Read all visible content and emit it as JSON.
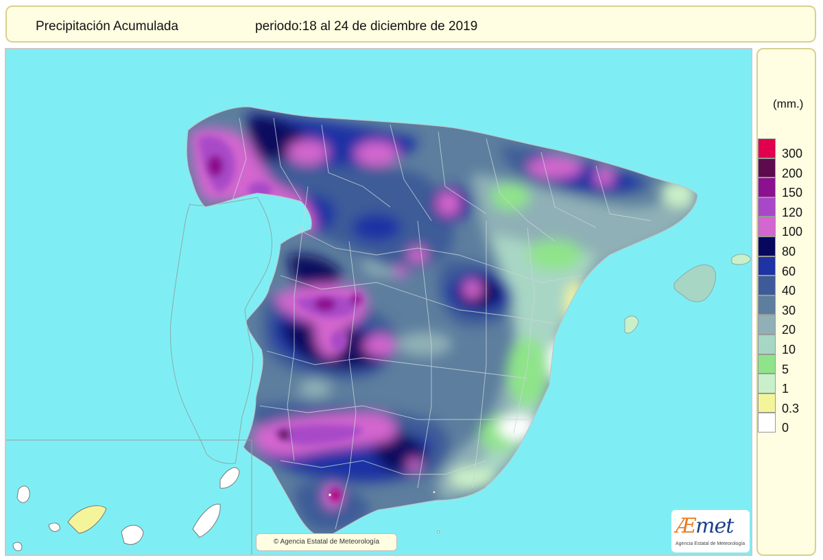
{
  "header": {
    "title": "Precipitación Acumulada",
    "period": "periodo:18 al 24 de diciembre de 2019"
  },
  "legend": {
    "unit": "(mm.)",
    "items": [
      {
        "label": "300",
        "color": "#e0004e"
      },
      {
        "label": "200",
        "color": "#5e0b4e"
      },
      {
        "label": "150",
        "color": "#8c1090"
      },
      {
        "label": "120",
        "color": "#a848c8"
      },
      {
        "label": "100",
        "color": "#d466cf"
      },
      {
        "label": "80",
        "color": "#08075e"
      },
      {
        "label": "60",
        "color": "#1e33a4"
      },
      {
        "label": "40",
        "color": "#3d5b98"
      },
      {
        "label": "30",
        "color": "#5d7e9e"
      },
      {
        "label": "20",
        "color": "#8fb0b6"
      },
      {
        "label": "10",
        "color": "#a8d6c4"
      },
      {
        "label": "5",
        "color": "#8fe48a"
      },
      {
        "label": "1",
        "color": "#c9f0c8"
      },
      {
        "label": "0.3",
        "color": "#f4f49a"
      },
      {
        "label": "0",
        "color": "#ffffff"
      }
    ]
  },
  "map": {
    "sea_color": "#7feef4",
    "credit": "Agencia Estatal de Meteorología",
    "logo_text": "AEmet",
    "logo_subtext": "Agencia Estatal de Meteorología"
  }
}
